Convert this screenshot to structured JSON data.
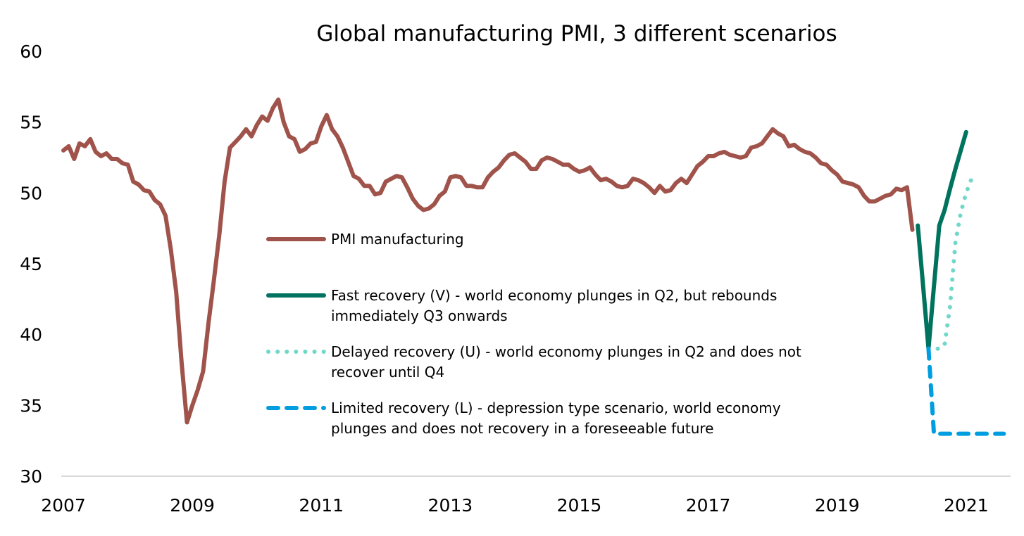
{
  "chart_data": {
    "type": "line",
    "title": "Global manufacturing PMI, 3 different scenarios",
    "xlabel": "",
    "ylabel": "",
    "ylim": [
      30,
      60
    ],
    "yticks": [
      "30",
      "35",
      "40",
      "45",
      "50",
      "55",
      "60"
    ],
    "xticks": [
      "2007",
      "2009",
      "2011",
      "2013",
      "2015",
      "2017",
      "2019",
      "2021"
    ],
    "x_start": "2007-01",
    "x_frequency": "monthly",
    "x_range_months": [
      0,
      176
    ],
    "grid": false,
    "legend_position": "center",
    "series": [
      {
        "name": "PMI manufacturing",
        "color": "#A0534A",
        "style": "solid",
        "start_month_index": 0,
        "values": [
          53.0,
          53.3,
          52.4,
          53.5,
          53.3,
          53.8,
          52.9,
          52.6,
          52.8,
          52.4,
          52.4,
          52.1,
          52.0,
          50.8,
          50.6,
          50.2,
          50.1,
          49.5,
          49.2,
          48.4,
          46.0,
          43.0,
          38.0,
          33.8,
          35.0,
          36.1,
          37.4,
          40.8,
          43.8,
          47.0,
          50.8,
          53.2,
          53.6,
          54.0,
          54.5,
          54.0,
          54.8,
          55.4,
          55.1,
          56.0,
          56.6,
          55.0,
          54.0,
          53.8,
          52.9,
          53.1,
          53.5,
          53.6,
          54.7,
          55.5,
          54.5,
          54.0,
          53.2,
          52.2,
          51.2,
          51.0,
          50.5,
          50.5,
          49.9,
          50.0,
          50.8,
          51.0,
          51.2,
          51.1,
          50.4,
          49.6,
          49.1,
          48.8,
          48.9,
          49.2,
          49.8,
          50.1,
          51.1,
          51.2,
          51.1,
          50.5,
          50.5,
          50.4,
          50.4,
          51.1,
          51.5,
          51.8,
          52.3,
          52.7,
          52.8,
          52.5,
          52.2,
          51.7,
          51.7,
          52.3,
          52.5,
          52.4,
          52.2,
          52.0,
          52.0,
          51.7,
          51.5,
          51.6,
          51.8,
          51.3,
          50.9,
          51.0,
          50.8,
          50.5,
          50.4,
          50.5,
          51.0,
          50.9,
          50.7,
          50.4,
          50.0,
          50.5,
          50.1,
          50.2,
          50.7,
          51.0,
          50.7,
          51.3,
          51.9,
          52.2,
          52.6,
          52.6,
          52.8,
          52.9,
          52.7,
          52.6,
          52.5,
          52.6,
          53.2,
          53.3,
          53.5,
          54.0,
          54.5,
          54.2,
          54.0,
          53.3,
          53.4,
          53.1,
          52.9,
          52.8,
          52.5,
          52.1,
          52.0,
          51.6,
          51.3,
          50.8,
          50.7,
          50.6,
          50.4,
          49.8,
          49.4,
          49.4,
          49.6,
          49.8,
          49.9,
          50.3,
          50.2,
          50.4,
          47.4
        ]
      },
      {
        "name": "Fast recovery (V) - world economy plunges in Q2, but rebounds immediately Q3 onwards",
        "color": "#00735F",
        "style": "solid",
        "start_month_index": 159,
        "values": [
          47.7,
          43.4,
          39.0,
          43.4,
          47.7,
          48.8,
          50.3,
          51.7,
          53.0,
          54.3
        ]
      },
      {
        "name": "Delayed recovery (U) - world economy plunges in Q2 and does not recover until Q4",
        "color": "#6FD8C8",
        "style": "dotted",
        "start_month_index": 161,
        "values": [
          39.0,
          39.0,
          39.0,
          39.3,
          42.0,
          46.5,
          48.6,
          50.0,
          51.0
        ]
      },
      {
        "name": "Limited recovery (L) - depression type scenario, world economy plunges and does not recovery in a foreseeable future",
        "color": "#009EE0",
        "style": "dashed",
        "start_month_index": 161,
        "values": [
          39.0,
          33.0,
          33.0,
          33.0,
          33.0,
          33.0,
          33.0,
          33.0,
          33.0,
          33.0,
          33.0,
          33.0,
          33.0,
          33.0,
          33.0
        ]
      }
    ],
    "legend": [
      {
        "lines": [
          "PMI manufacturing"
        ]
      },
      {
        "lines": [
          "Fast recovery (V) - world economy plunges in Q2, but rebounds",
          "immediately Q3 onwards"
        ]
      },
      {
        "lines": [
          "Delayed recovery (U) - world economy plunges in Q2 and does not",
          "recover until Q4"
        ]
      },
      {
        "lines": [
          "Limited recovery (L) - depression type scenario, world economy",
          "plunges and does not recovery in a foreseeable future"
        ]
      }
    ]
  }
}
